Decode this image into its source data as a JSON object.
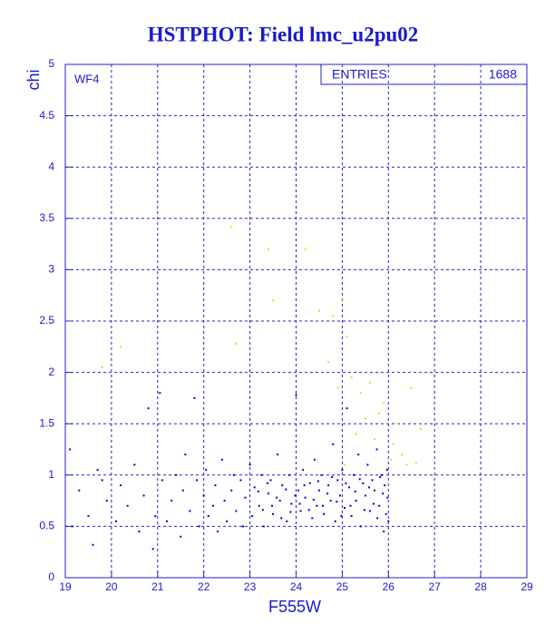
{
  "chart_data": {
    "type": "scatter",
    "title": "HSTPHOT: Field lmc_u2pu02",
    "x_label": "F555W",
    "y_label": "chi",
    "panel_label": "WF4",
    "stats": {
      "label": "ENTRIES",
      "value": 1688
    },
    "xlim": [
      19,
      29
    ],
    "ylim": [
      0,
      5
    ],
    "xticks": [
      19,
      20,
      21,
      22,
      23,
      24,
      25,
      26,
      27,
      28,
      29
    ],
    "yticks": [
      0,
      0.5,
      1,
      1.5,
      2,
      2.5,
      3,
      3.5,
      4,
      4.5,
      5
    ],
    "grid": true,
    "series": [
      {
        "color": "#0000cc",
        "x": [
          19.1,
          19.3,
          19.5,
          19.6,
          19.7,
          19.9,
          19.15,
          19.8,
          20.1,
          20.2,
          20.35,
          20.5,
          20.6,
          20.7,
          20.8,
          20.9,
          20.95,
          21.05,
          21.1,
          21.2,
          21.3,
          21.4,
          21.5,
          21.55,
          21.6,
          21.7,
          21.8,
          21.85,
          21.9,
          22.0,
          22.05,
          22.1,
          22.2,
          22.25,
          22.3,
          22.4,
          22.45,
          22.5,
          22.6,
          22.65,
          22.7,
          22.8,
          22.85,
          22.9,
          23.0,
          23.05,
          23.1,
          23.2,
          23.25,
          23.3,
          23.4,
          23.45,
          23.5,
          23.6,
          23.65,
          23.7,
          23.8,
          23.85,
          23.9,
          24.0,
          24.05,
          24.1,
          24.15,
          24.2,
          24.3,
          24.35,
          24.4,
          24.45,
          24.5,
          24.55,
          24.6,
          24.7,
          24.75,
          24.8,
          24.85,
          24.9,
          24.95,
          25.0,
          25.05,
          25.1,
          25.15,
          25.2,
          25.25,
          25.3,
          25.35,
          25.4,
          25.45,
          25.5,
          25.55,
          25.6,
          25.65,
          25.7,
          25.75,
          25.8,
          25.85,
          25.9,
          25.92,
          25.95,
          25.97,
          25.98,
          26.0,
          25.88,
          25.82,
          25.76,
          25.68,
          25.58,
          25.48,
          25.38,
          25.28,
          25.18,
          25.08,
          24.98,
          24.88,
          24.78,
          24.68,
          24.58,
          24.48,
          24.38,
          24.28,
          24.18,
          24.08,
          23.98,
          23.88,
          23.78,
          23.68,
          23.58,
          23.48,
          23.38,
          23.28,
          23.18
        ],
        "values": [
          1.25,
          0.85,
          0.6,
          0.32,
          1.05,
          0.75,
          0.5,
          0.95,
          0.55,
          0.9,
          0.7,
          1.1,
          0.45,
          0.8,
          1.65,
          0.28,
          0.6,
          1.8,
          0.95,
          0.55,
          0.75,
          1.0,
          0.4,
          0.85,
          1.2,
          0.65,
          1.75,
          0.95,
          0.5,
          0.8,
          1.05,
          0.6,
          0.7,
          0.9,
          0.45,
          1.15,
          0.75,
          0.55,
          0.85,
          1.0,
          0.65,
          0.95,
          0.5,
          0.78,
          1.1,
          0.6,
          0.88,
          0.7,
          1.0,
          0.5,
          0.82,
          0.95,
          0.62,
          1.2,
          0.75,
          0.9,
          0.55,
          1.0,
          0.72,
          1.78,
          0.85,
          0.65,
          1.05,
          0.78,
          0.92,
          0.58,
          1.15,
          0.7,
          0.85,
          1.0,
          0.62,
          0.9,
          0.75,
          1.3,
          0.55,
          0.95,
          0.8,
          1.05,
          0.68,
          1.65,
          0.88,
          0.6,
          1.0,
          0.75,
          1.2,
          0.5,
          0.92,
          0.8,
          1.1,
          0.65,
          0.95,
          0.85,
          1.25,
          0.7,
          1.0,
          0.45,
          0.9,
          0.62,
          1.05,
          0.78,
          0.55,
          0.82,
          0.98,
          0.58,
          0.72,
          0.88,
          0.66,
          0.96,
          0.84,
          0.7,
          0.92,
          0.6,
          0.74,
          0.98,
          0.82,
          0.7,
          0.94,
          0.76,
          0.66,
          0.9,
          0.72,
          0.8,
          0.64,
          0.86,
          0.58,
          0.78,
          0.7,
          0.92,
          0.66,
          0.84
        ]
      },
      {
        "color": "#e8d820",
        "x": [
          22.6,
          23.4,
          24.2,
          23.5,
          25.0,
          24.8,
          22.7,
          20.2,
          19.8,
          25.1,
          24.7,
          25.2,
          25.6,
          25.4,
          26.5,
          26.2,
          25.8,
          25.3,
          26.1,
          26.7,
          26.4,
          26.6,
          26.05,
          25.9,
          24.9,
          25.5,
          26.3,
          24.5,
          25.05,
          25.7
        ],
        "values": [
          3.42,
          3.2,
          3.2,
          2.7,
          2.72,
          2.55,
          2.28,
          2.25,
          2.05,
          2.35,
          2.1,
          1.95,
          1.9,
          1.8,
          1.85,
          1.5,
          1.6,
          1.4,
          1.3,
          1.45,
          1.1,
          1.12,
          1.15,
          1.7,
          1.85,
          1.55,
          1.2,
          2.6,
          1.1,
          1.35
        ]
      }
    ]
  }
}
